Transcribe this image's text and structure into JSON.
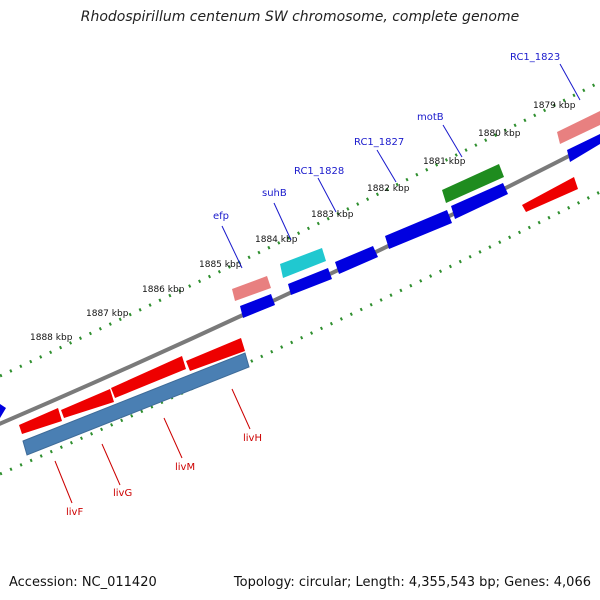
{
  "title": "Rhodospirillum centenum SW chromosome, complete genome",
  "footer": {
    "accession": "Accession: NC_011420",
    "stats": "Topology: circular; Length: 4,355,543 bp; Genes: 4,066"
  },
  "colors": {
    "forward_gene": "#0000e0",
    "reverse_gene": "#ee0000",
    "pink_gene": "#e88080",
    "cyan_gene": "#20c8d0",
    "green_gene": "#1f8c1f",
    "operon": "#4a7fb3",
    "backbone": "#7a7a7a",
    "tick": "#2f8f2f",
    "label_blue": "#1a1acc",
    "label_red": "#cc0000"
  },
  "kbp_labels": [
    "1879 kbp",
    "1880 kbp",
    "1881 kbp",
    "1882 kbp",
    "1883 kbp",
    "1884 kbp",
    "1885 kbp",
    "1886 kbp",
    "1887 kbp",
    "1888 kbp"
  ],
  "gene_labels": {
    "top": [
      "RC1_1823",
      "motB",
      "RC1_1827",
      "RC1_1828",
      "suhB",
      "efp"
    ],
    "bottom": [
      "livF",
      "livG",
      "livM",
      "livH"
    ]
  }
}
